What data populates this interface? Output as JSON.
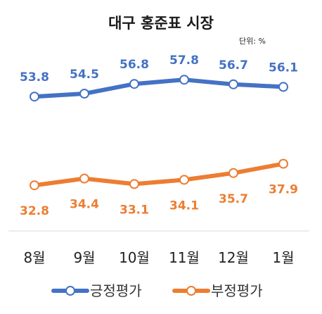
{
  "chart_data": {
    "type": "line",
    "title": "대구 홍준표 시장",
    "unit_label": "단위: %",
    "categories": [
      "8월",
      "9월",
      "10월",
      "11월",
      "12월",
      "1월"
    ],
    "ylim": [
      20,
      70
    ],
    "grid": false,
    "legend_position": "bottom",
    "series": [
      {
        "name": "긍정평가",
        "color": "#4472C4",
        "values": [
          53.8,
          54.5,
          56.8,
          57.8,
          56.7,
          56.1
        ]
      },
      {
        "name": "부정평가",
        "color": "#ED7D31",
        "values": [
          32.8,
          34.4,
          33.1,
          34.1,
          35.7,
          37.9
        ]
      }
    ]
  },
  "colors": {
    "axis": "#d9d9d9",
    "marker_fill": "#ffffff"
  }
}
